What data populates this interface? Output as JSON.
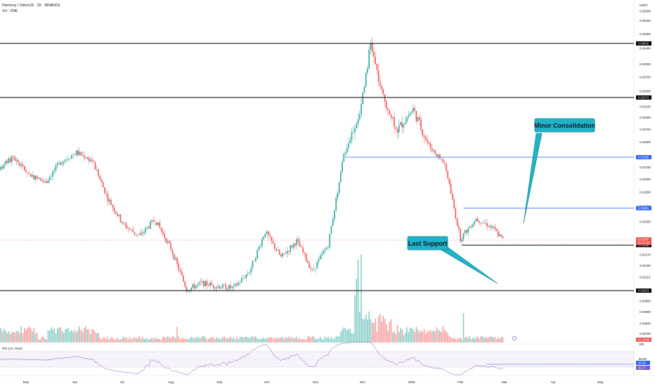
{
  "header": {
    "symbol": "Harmony / TetherUS · 1D · BINANCE",
    "volume_label": "Vol · ONE",
    "rsi_label": "RSI (14, close)"
  },
  "chart_data": {
    "type": "candlestick",
    "price_axis": {
      "unit": "USDT",
      "scale": "log",
      "range": [
        0.00755,
        0.0555
      ],
      "ticks": [
        "0.05500",
        "0.05200",
        "0.04800",
        "0.04400",
        "0.04000",
        "0.03700",
        "0.03400",
        "0.03100",
        "0.02900",
        "0.02700",
        "0.02500",
        "0.02150",
        "0.02000",
        "0.01850",
        "0.01700",
        "0.01550",
        "0.01400",
        "0.01270",
        "0.01190",
        "0.01110",
        "0.00960",
        "0.00900",
        "0.00840",
        "0.00790"
      ]
    },
    "time_axis": {
      "ticks": [
        "May",
        "Jun",
        "Jul",
        "Aug",
        "Sep",
        "Oct",
        "Nov",
        "Dec",
        "2025",
        "Feb",
        "Mar",
        "Apr",
        "May"
      ]
    },
    "horizontal_levels": [
      {
        "price": 0.04532,
        "label": "0.04532",
        "color": "#000000"
      },
      {
        "price": 0.03274,
        "label": "0.03274",
        "color": "#000000"
      },
      {
        "price": 0.02285,
        "label": "0.02285",
        "color": "#2962ff"
      },
      {
        "price": 0.01681,
        "label": "0.01681",
        "color": "#2962ff"
      },
      {
        "price": 0.01346,
        "label": "0.01346",
        "color": "#000000"
      },
      {
        "price": 0.01023,
        "label": "0.01023",
        "color": "#000000"
      }
    ],
    "current_price": {
      "label": "0.01387",
      "countdown": "05:21:58",
      "color": "#ef5350"
    },
    "annotations": [
      {
        "text": "Minor Consolidation"
      },
      {
        "text": "Last Support"
      }
    ],
    "volume_tag": "92.284M",
    "volume_axis_tag": "100",
    "rsi": {
      "ticks": [
        "50.00"
      ],
      "value_tags": [
        "38.30",
        "36.77"
      ]
    },
    "ohlc": [
      {
        "date": "2024-04-13",
        "close": 0.0212
      },
      {
        "date": "2024-04-23",
        "close": 0.0228
      },
      {
        "date": "2024-05-03",
        "close": 0.0206
      },
      {
        "date": "2024-05-13",
        "close": 0.0196
      },
      {
        "date": "2024-05-23",
        "close": 0.0222
      },
      {
        "date": "2024-06-02",
        "close": 0.0235
      },
      {
        "date": "2024-06-12",
        "close": 0.0224
      },
      {
        "date": "2024-06-22",
        "close": 0.0178
      },
      {
        "date": "2024-07-02",
        "close": 0.0152
      },
      {
        "date": "2024-07-12",
        "close": 0.0142
      },
      {
        "date": "2024-07-22",
        "close": 0.0157
      },
      {
        "date": "2024-08-01",
        "close": 0.0132
      },
      {
        "date": "2024-08-11",
        "close": 0.0103
      },
      {
        "date": "2024-08-21",
        "close": 0.0107
      },
      {
        "date": "2024-08-31",
        "close": 0.0105
      },
      {
        "date": "2024-09-10",
        "close": 0.0104
      },
      {
        "date": "2024-09-20",
        "close": 0.0115
      },
      {
        "date": "2024-09-30",
        "close": 0.0146
      },
      {
        "date": "2024-10-10",
        "close": 0.0125
      },
      {
        "date": "2024-10-20",
        "close": 0.0138
      },
      {
        "date": "2024-10-30",
        "close": 0.0115
      },
      {
        "date": "2024-11-09",
        "close": 0.0135
      },
      {
        "date": "2024-11-19",
        "close": 0.0232
      },
      {
        "date": "2024-11-29",
        "close": 0.03
      },
      {
        "date": "2024-12-06",
        "close": 0.0452
      },
      {
        "date": "2024-12-13",
        "close": 0.0335
      },
      {
        "date": "2024-12-23",
        "close": 0.027
      },
      {
        "date": "2025-01-02",
        "close": 0.0305
      },
      {
        "date": "2025-01-12",
        "close": 0.0245
      },
      {
        "date": "2025-01-22",
        "close": 0.022
      },
      {
        "date": "2025-02-01",
        "close": 0.014
      },
      {
        "date": "2025-02-11",
        "close": 0.0158
      },
      {
        "date": "2025-02-21",
        "close": 0.015
      },
      {
        "date": "2025-02-28",
        "close": 0.0139
      }
    ]
  }
}
